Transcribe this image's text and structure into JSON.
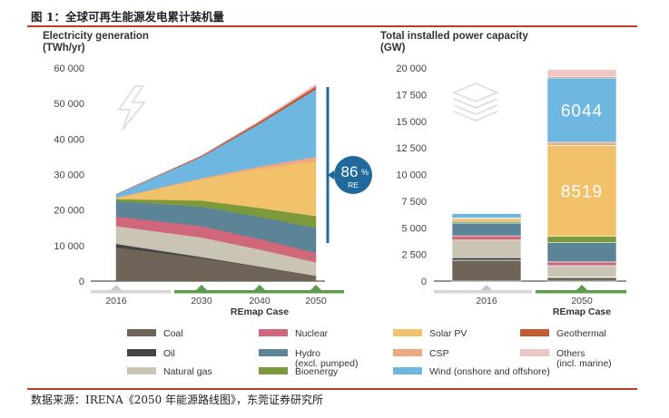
{
  "figure_title": "图 1：全球可再生能源发电累计装机量",
  "source_note": "数据来源：IRENA《2050 年能源路线图》，东莞证券研究所",
  "colors": {
    "Coal": "#6e6457",
    "Oil": "#434546",
    "Natural gas": "#c9c4b4",
    "Nuclear": "#d1677a",
    "Hydro": "#5b8497",
    "Bioenergy": "#7c9a3c",
    "Solar PV": "#f2c26b",
    "CSP": "#f0a882",
    "Wind": "#6eb7e0",
    "Geothermal": "#c45a32",
    "Others": "#efc6c6",
    "accent": "#1f6a9a",
    "green_bar": "#5c9c4c"
  },
  "chart_data": [
    {
      "type": "area",
      "title": "Electricity generation",
      "unit": "(TWh/yr)",
      "x": [
        "2016",
        "2030",
        "2040",
        "2050"
      ],
      "ylim": [
        0,
        60000
      ],
      "yticks": [
        "0",
        "10 000",
        "20 000",
        "30 000",
        "40 000",
        "50 000",
        "60 000"
      ],
      "xcase_label": "REmap Case",
      "annotation": {
        "value": "86",
        "unit": "%",
        "label": "RE"
      },
      "series": [
        {
          "name": "Coal",
          "values": [
            9500,
            6500,
            4000,
            1500
          ]
        },
        {
          "name": "Oil",
          "values": [
            1000,
            300,
            100,
            0
          ]
        },
        {
          "name": "Natural gas",
          "values": [
            5000,
            5500,
            4800,
            3800
          ]
        },
        {
          "name": "Nuclear",
          "values": [
            2700,
            3200,
            3000,
            2700
          ]
        },
        {
          "name": "Hydro",
          "values": [
            4300,
            5500,
            6200,
            7000
          ]
        },
        {
          "name": "Bioenergy",
          "values": [
            600,
            1700,
            2500,
            3300
          ]
        },
        {
          "name": "Solar PV",
          "values": [
            400,
            6000,
            11000,
            15500
          ]
        },
        {
          "name": "CSP",
          "values": [
            0,
            300,
            700,
            1200
          ]
        },
        {
          "name": "Wind",
          "values": [
            900,
            6000,
            12000,
            19000
          ]
        },
        {
          "name": "Geothermal",
          "values": [
            100,
            300,
            600,
            900
          ]
        },
        {
          "name": "Others",
          "values": [
            0,
            100,
            300,
            600
          ]
        }
      ]
    },
    {
      "type": "bar",
      "title": "Total installed power capacity",
      "unit": "(GW)",
      "categories": [
        "2016",
        "2050"
      ],
      "ylim": [
        0,
        20000
      ],
      "yticks": [
        "0",
        "2 500",
        "5 000",
        "7 500",
        "10 000",
        "12 500",
        "15 000",
        "17 500",
        "20 000"
      ],
      "xcase_label": "REmap Case",
      "series": [
        {
          "name": "Coal",
          "values": [
            1950,
            350
          ]
        },
        {
          "name": "Oil",
          "values": [
            250,
            50
          ]
        },
        {
          "name": "Natural gas",
          "values": [
            1650,
            1050
          ]
        },
        {
          "name": "Nuclear",
          "values": [
            400,
            350
          ]
        },
        {
          "name": "Hydro",
          "values": [
            1200,
            1800
          ]
        },
        {
          "name": "Bioenergy",
          "values": [
            150,
            600
          ]
        },
        {
          "name": "Solar PV",
          "values": [
            300,
            8519
          ]
        },
        {
          "name": "CSP",
          "values": [
            20,
            300
          ]
        },
        {
          "name": "Wind",
          "values": [
            450,
            6044
          ]
        },
        {
          "name": "Geothermal",
          "values": [
            15,
            100
          ]
        },
        {
          "name": "Others",
          "values": [
            15,
            700
          ]
        }
      ],
      "data_labels": [
        {
          "series": "Solar PV",
          "category": "2050",
          "text": "8519"
        },
        {
          "series": "Wind",
          "category": "2050",
          "text": "6044"
        }
      ]
    }
  ],
  "legend": [
    {
      "key": "Coal",
      "label": "Coal"
    },
    {
      "key": "Oil",
      "label": "Oil"
    },
    {
      "key": "Natural gas",
      "label": "Natural gas"
    },
    {
      "key": "Nuclear",
      "label": "Nuclear"
    },
    {
      "key": "Hydro",
      "label": "Hydro",
      "label2": "(excl. pumped)"
    },
    {
      "key": "Bioenergy",
      "label": "Bioenergy"
    },
    {
      "key": "Solar PV",
      "label": "Solar PV"
    },
    {
      "key": "CSP",
      "label": "CSP"
    },
    {
      "key": "Wind",
      "label": "Wind (onshore and offshore)"
    },
    {
      "key": "Geothermal",
      "label": "Geothermal"
    },
    {
      "key": "Others",
      "label": "Others",
      "label2": "(incl. marine)"
    }
  ]
}
